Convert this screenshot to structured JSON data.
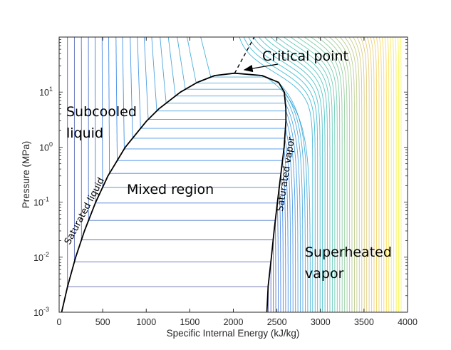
{
  "chart_data": {
    "type": "line",
    "title": "",
    "xlabel": "Specific Internal Energy (kJ/kg)",
    "ylabel": "Pressure (MPa)",
    "xlim": [
      0,
      4000
    ],
    "ylim": [
      0.001,
      100
    ],
    "yscale": "log",
    "grid": false,
    "x_ticks": [
      0,
      500,
      1000,
      1500,
      2000,
      2500,
      3000,
      3500,
      4000
    ],
    "x_tick_labels": [
      "0",
      "500",
      "1000",
      "1500",
      "2000",
      "2500",
      "3000",
      "3500",
      "4000"
    ],
    "y_ticks": [
      0.001,
      0.01,
      0.1,
      1,
      10
    ],
    "y_tick_labels": [
      {
        "base": "10",
        "exp": "-3"
      },
      {
        "base": "10",
        "exp": "-2"
      },
      {
        "base": "10",
        "exp": "-1"
      },
      {
        "base": "10",
        "exp": "0"
      },
      {
        "base": "10",
        "exp": "1"
      }
    ],
    "saturation_dome": {
      "pressure_MPa": [
        0.001,
        0.003,
        0.01,
        0.03,
        0.1,
        0.3,
        1,
        3,
        5,
        10,
        15,
        20,
        22.064
      ],
      "u_sat_liquid": [
        29,
        98,
        190,
        290,
        420,
        560,
        760,
        1005,
        1148,
        1393,
        1585,
        1786,
        2015
      ],
      "u_sat_vapor": [
        2385,
        2400,
        2437,
        2468,
        2506,
        2543,
        2583,
        2604,
        2603,
        2585,
        2520,
        2330,
        2015
      ]
    },
    "critical_point": {
      "u": 2015,
      "p": 22.064
    },
    "critical_dashed_line": {
      "u": [
        2015,
        2240
      ],
      "p": [
        22.064,
        100
      ]
    },
    "isotherms_C": {
      "start": 20,
      "stop": 1100,
      "step": 20
    },
    "colormap": [
      "#352A87",
      "#0363E1",
      "#1485D4",
      "#06A7C6",
      "#38B99E",
      "#92BF73",
      "#D9BA56",
      "#FCCE2E",
      "#F9FB0E"
    ],
    "annotations": {
      "critical_point": "Critical point",
      "subcooled_1": "Subcooled",
      "subcooled_2": "liquid",
      "mixed": "Mixed region",
      "superheated_1": "Superheated",
      "superheated_2": "vapor",
      "sat_liquid": "Saturated liquid",
      "sat_vapor": "Saturated vapor"
    }
  }
}
